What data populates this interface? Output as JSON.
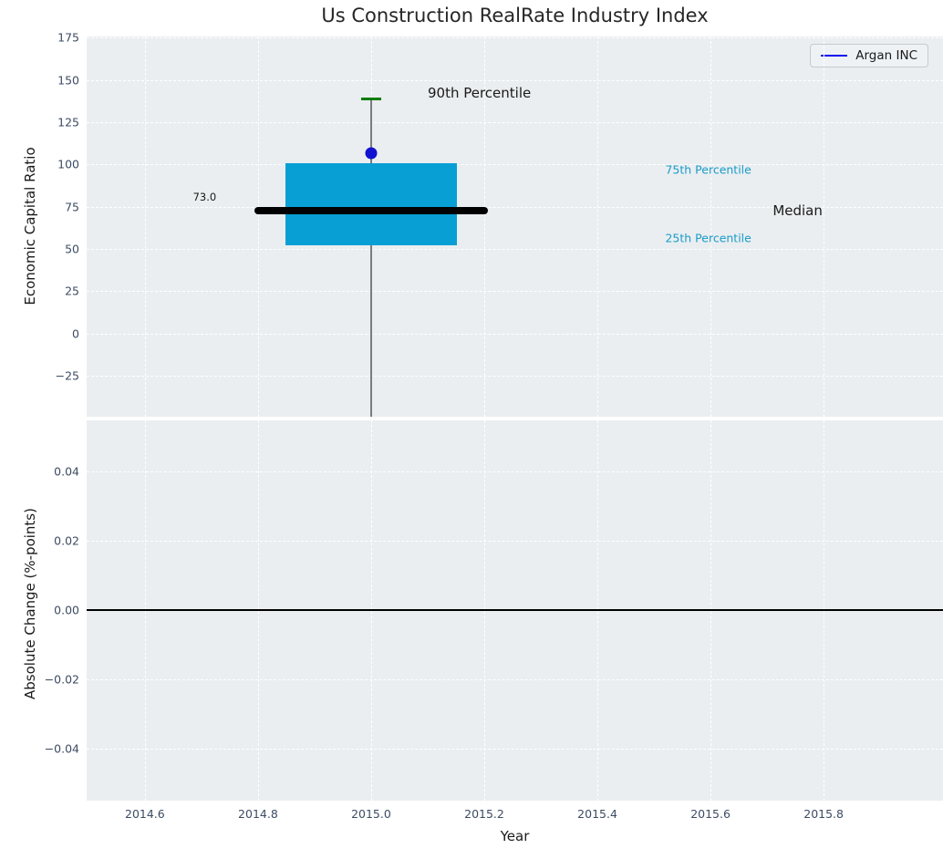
{
  "figure": {
    "background": "#ffffff",
    "plot_background": "#eaeef0",
    "grid_color": "#ffffff",
    "tick_color": "#3d4c63",
    "text_color": "#1a1a1a"
  },
  "chart_data": [
    {
      "type": "box",
      "title": "Us Construction RealRate Industry Index",
      "ylabel": "Economic Capital Ratio",
      "grid": true,
      "xlim": [
        2014.497,
        2016.011
      ],
      "ylim": [
        -49.2,
        175.8
      ],
      "ytick_values": [
        175,
        150,
        125,
        100,
        75,
        50,
        25,
        0,
        -25
      ],
      "ytick_labels": [
        "175",
        "150",
        "125",
        "100",
        "75",
        "50",
        "25",
        "0",
        "−25"
      ],
      "xgrid_values": [
        2014.6,
        2014.8,
        2015.0,
        2015.2,
        2015.4,
        2015.6,
        2015.8
      ],
      "legend": {
        "position": "upper right",
        "entries": [
          {
            "label": "Argan INC",
            "color": "#0a0af0"
          }
        ]
      },
      "box": {
        "x": 2015.0,
        "q1": 52.4,
        "median": 73.0,
        "q3": 100.8,
        "p90": 139.0,
        "whisker_low_clipped": -49.2,
        "box_halfwidth": 0.152,
        "median_halfwidth": 0.206,
        "cap_halfwidth": 0.018,
        "box_color": "#089fd4",
        "median_color": "#000000",
        "whisker_color": "#7c7c7c",
        "cap_color": "#007d00",
        "company_point": {
          "name": "Argan INC",
          "value": 106.7,
          "color": "#1111cf"
        }
      },
      "annotations": [
        {
          "text": "90th Percentile",
          "x": 2015.1,
          "y": 142.5,
          "color": "#1a1a1a",
          "size": 15
        },
        {
          "text": "75th Percentile",
          "x": 2015.52,
          "y": 97.0,
          "color": "#1a9bc9",
          "size": 12.5
        },
        {
          "text": "Median",
          "x": 2015.71,
          "y": 73.0,
          "color": "#1a1a1a",
          "size": 15
        },
        {
          "text": "25th Percentile",
          "x": 2015.52,
          "y": 56.5,
          "color": "#1a9bc9",
          "size": 12.5
        },
        {
          "text": "73.0",
          "x": 2014.685,
          "y": 81.0,
          "color": "#1a1a1a",
          "size": 11.5
        }
      ]
    },
    {
      "type": "line",
      "ylabel": "Absolute Change (%-points)",
      "xlabel": "Year",
      "grid": true,
      "xlim": [
        2014.497,
        2016.011
      ],
      "ylim": [
        -0.055,
        0.0547
      ],
      "ytick_values": [
        0.04,
        0.02,
        0.0,
        -0.02,
        -0.04
      ],
      "ytick_labels": [
        "0.04",
        "0.02",
        "0.00",
        "−0.02",
        "−0.04"
      ],
      "xtick_values": [
        2014.6,
        2014.8,
        2015.0,
        2015.2,
        2015.4,
        2015.6,
        2015.8
      ],
      "xtick_labels": [
        "2014.6",
        "2014.8",
        "2015.0",
        "2015.2",
        "2015.4",
        "2015.6",
        "2015.8"
      ],
      "zero_line": {
        "y": 0.0,
        "color": "#000000"
      }
    }
  ]
}
